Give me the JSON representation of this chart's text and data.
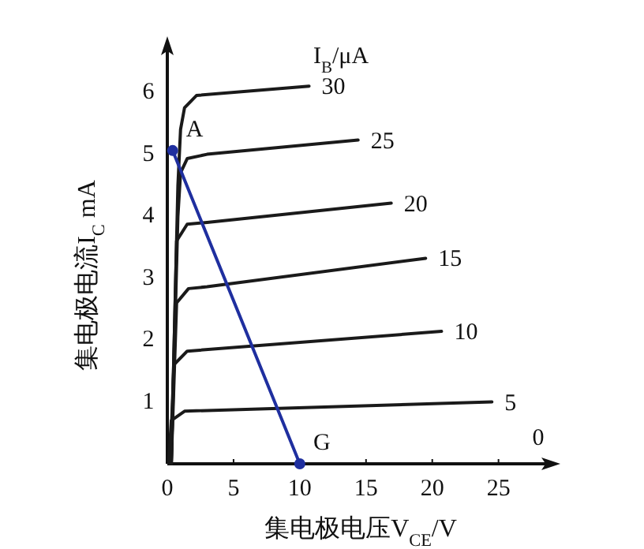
{
  "chart_data": {
    "type": "line",
    "xlabel": "集电极电压V$_{CE}$/V",
    "ylabel": "集电极电流I$_{C}$ mA",
    "legend_title": "I$_{B}$/μA",
    "xlim": [
      0,
      28
    ],
    "ylim": [
      0,
      6.6
    ],
    "xticks": [
      0,
      5,
      10,
      15,
      20,
      25
    ],
    "yticks": [
      1,
      2,
      3,
      4,
      5,
      6
    ],
    "grid": false,
    "marker": "none",
    "line_style": "solid",
    "series": [
      {
        "name": "30",
        "color": "#1a1a1a",
        "x": [
          0.3,
          0.8,
          1.0,
          1.3,
          2.2,
          10.7
        ],
        "values": [
          0,
          4.5,
          5.4,
          5.75,
          5.95,
          6.1
        ]
      },
      {
        "name": "25",
        "color": "#1a1a1a",
        "x": [
          0.3,
          0.8,
          1.0,
          1.5,
          3,
          14.4
        ],
        "values": [
          0,
          4.0,
          4.7,
          4.93,
          5.0,
          5.23
        ]
      },
      {
        "name": "20",
        "color": "#1a1a1a",
        "x": [
          0.3,
          0.7,
          1.5,
          3,
          16.9
        ],
        "values": [
          0,
          3.6,
          3.87,
          3.9,
          4.21
        ]
      },
      {
        "name": "15",
        "color": "#1a1a1a",
        "x": [
          0.3,
          0.7,
          1.6,
          3,
          19.5
        ],
        "values": [
          0,
          2.6,
          2.83,
          2.86,
          3.32
        ]
      },
      {
        "name": "10",
        "color": "#1a1a1a",
        "x": [
          0.2,
          0.5,
          1.5,
          20.7
        ],
        "values": [
          0,
          1.6,
          1.82,
          2.14
        ]
      },
      {
        "name": "5",
        "color": "#1a1a1a",
        "x": [
          0.1,
          0.3,
          1.3,
          24.5
        ],
        "values": [
          0,
          0.7,
          0.85,
          1.0
        ]
      },
      {
        "type": "line",
        "color": "#1f2f9f",
        "marker": "circle",
        "x": [
          0.4,
          10
        ],
        "values": [
          5.06,
          0
        ]
      }
    ],
    "annotations": [
      {
        "text": "A",
        "x": 0.4,
        "y": 5.06
      },
      {
        "text": "G",
        "x": 10,
        "y": 0
      },
      "0"
    ]
  }
}
